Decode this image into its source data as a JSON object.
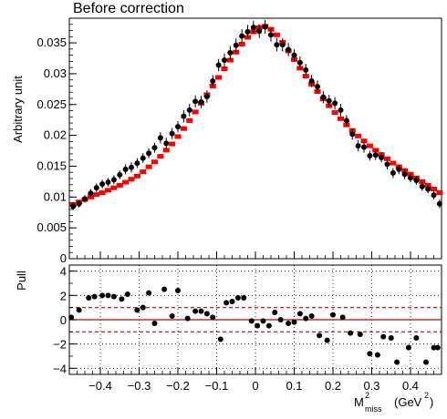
{
  "chart_data": [
    {
      "type": "scatter",
      "title": "Before correction",
      "ylabel": "Arbitrary unit",
      "xlabel": "",
      "xlim": [
        -0.48,
        0.48
      ],
      "ylim": [
        0,
        0.039
      ],
      "x_ticks": [
        {
          "v": -0.4,
          "label": "−0.4"
        },
        {
          "v": -0.3,
          "label": "−0.3"
        },
        {
          "v": -0.2,
          "label": "−0.2"
        },
        {
          "v": -0.1,
          "label": "−0.1"
        },
        {
          "v": 0,
          "label": "0"
        },
        {
          "v": 0.1,
          "label": "0.1"
        },
        {
          "v": 0.2,
          "label": "0.2"
        },
        {
          "v": 0.3,
          "label": "0.3"
        },
        {
          "v": 0.4,
          "label": "0.4"
        }
      ],
      "y_ticks": [
        {
          "v": 0,
          "label": "0"
        },
        {
          "v": 0.005,
          "label": "0.005"
        },
        {
          "v": 0.01,
          "label": "0.01"
        },
        {
          "v": 0.015,
          "label": "0.015"
        },
        {
          "v": 0.02,
          "label": "0.02"
        },
        {
          "v": 0.025,
          "label": "0.025"
        },
        {
          "v": 0.03,
          "label": "0.03"
        },
        {
          "v": 0.035,
          "label": "0.035"
        }
      ],
      "bin_width": 0.0167,
      "series": [
        {
          "name": "",
          "color": "#ff0000",
          "style": "bin-markers",
          "x": [
            -0.47,
            -0.455,
            -0.44,
            -0.425,
            -0.41,
            -0.395,
            -0.38,
            -0.365,
            -0.35,
            -0.335,
            -0.32,
            -0.305,
            -0.29,
            -0.275,
            -0.26,
            -0.245,
            -0.23,
            -0.215,
            -0.2,
            -0.185,
            -0.17,
            -0.155,
            -0.14,
            -0.125,
            -0.11,
            -0.095,
            -0.08,
            -0.065,
            -0.05,
            -0.035,
            -0.02,
            -0.005,
            0.01,
            0.025,
            0.04,
            0.055,
            0.07,
            0.085,
            0.1,
            0.115,
            0.13,
            0.145,
            0.16,
            0.175,
            0.19,
            0.205,
            0.22,
            0.235,
            0.25,
            0.265,
            0.28,
            0.295,
            0.31,
            0.325,
            0.34,
            0.355,
            0.37,
            0.385,
            0.4,
            0.415,
            0.43,
            0.445,
            0.46,
            0.475
          ],
          "y": [
            0.0088,
            0.0092,
            0.0096,
            0.01,
            0.0104,
            0.0107,
            0.0111,
            0.0115,
            0.0119,
            0.0124,
            0.0129,
            0.0134,
            0.0141,
            0.0149,
            0.0157,
            0.0166,
            0.0176,
            0.0186,
            0.0198,
            0.0211,
            0.0224,
            0.0238,
            0.0252,
            0.0266,
            0.028,
            0.0294,
            0.0308,
            0.0322,
            0.0335,
            0.0348,
            0.0359,
            0.0368,
            0.0375,
            0.0377,
            0.0372,
            0.0363,
            0.0351,
            0.0337,
            0.0323,
            0.0309,
            0.0296,
            0.0283,
            0.0271,
            0.0259,
            0.0248,
            0.0237,
            0.0227,
            0.0217,
            0.0208,
            0.0199,
            0.0191,
            0.0183,
            0.0176,
            0.0169,
            0.0162,
            0.0155,
            0.0149,
            0.0143,
            0.0137,
            0.0131,
            0.0125,
            0.0119,
            0.0113,
            0.0107
          ]
        },
        {
          "name": "",
          "color": "#000000",
          "style": "points-with-errors",
          "x": [
            -0.47,
            -0.455,
            -0.44,
            -0.425,
            -0.41,
            -0.395,
            -0.38,
            -0.365,
            -0.35,
            -0.335,
            -0.32,
            -0.305,
            -0.29,
            -0.275,
            -0.26,
            -0.245,
            -0.23,
            -0.215,
            -0.2,
            -0.185,
            -0.17,
            -0.155,
            -0.14,
            -0.125,
            -0.11,
            -0.095,
            -0.08,
            -0.065,
            -0.05,
            -0.035,
            -0.02,
            -0.005,
            0.01,
            0.025,
            0.04,
            0.055,
            0.07,
            0.085,
            0.1,
            0.115,
            0.13,
            0.145,
            0.16,
            0.175,
            0.19,
            0.205,
            0.22,
            0.235,
            0.25,
            0.265,
            0.28,
            0.295,
            0.31,
            0.325,
            0.34,
            0.355,
            0.37,
            0.385,
            0.4,
            0.415,
            0.43,
            0.445,
            0.46,
            0.475
          ],
          "y": [
            0.0085,
            0.0089,
            0.0097,
            0.0106,
            0.0115,
            0.0121,
            0.0124,
            0.0128,
            0.0136,
            0.0145,
            0.0148,
            0.0155,
            0.0163,
            0.0171,
            0.018,
            0.0196,
            0.0187,
            0.0203,
            0.0214,
            0.0231,
            0.0241,
            0.0255,
            0.0254,
            0.0263,
            0.0288,
            0.0314,
            0.0322,
            0.0334,
            0.0346,
            0.0361,
            0.0368,
            0.0375,
            0.0369,
            0.0376,
            0.0363,
            0.0347,
            0.0347,
            0.0339,
            0.033,
            0.0318,
            0.0306,
            0.0288,
            0.0279,
            0.0262,
            0.0256,
            0.0252,
            0.0241,
            0.0224,
            0.0202,
            0.0183,
            0.0181,
            0.0167,
            0.0168,
            0.0164,
            0.0153,
            0.0139,
            0.0145,
            0.0137,
            0.0131,
            0.0127,
            0.0117,
            0.0113,
            0.0103,
            0.0089
          ],
          "err": [
            0.0006,
            0.0006,
            0.0006,
            0.0007,
            0.0007,
            0.0007,
            0.0007,
            0.0007,
            0.0007,
            0.0008,
            0.0008,
            0.0008,
            0.0008,
            0.0008,
            0.0008,
            0.0009,
            0.0009,
            0.0009,
            0.0009,
            0.001,
            0.001,
            0.001,
            0.001,
            0.001,
            0.001,
            0.001,
            0.0011,
            0.0011,
            0.0011,
            0.0011,
            0.0011,
            0.0011,
            0.0011,
            0.0011,
            0.0011,
            0.0011,
            0.0011,
            0.0011,
            0.001,
            0.001,
            0.001,
            0.001,
            0.001,
            0.001,
            0.001,
            0.001,
            0.001,
            0.0009,
            0.0009,
            0.0009,
            0.0009,
            0.0008,
            0.0008,
            0.0008,
            0.0008,
            0.0008,
            0.0008,
            0.0008,
            0.0007,
            0.0007,
            0.0007,
            0.0007,
            0.0007,
            0.0007
          ]
        }
      ]
    },
    {
      "type": "scatter",
      "title": "",
      "ylabel": "Pull",
      "xlabel_main": "M",
      "xlabel_sup": "2",
      "xlabel_sub": "miss",
      "xlabel_unit_open": "(GeV",
      "xlabel_unit_sup": "2",
      "xlabel_unit_close": ")",
      "xlim": [
        -0.48,
        0.48
      ],
      "ylim": [
        -4.5,
        4.5
      ],
      "grid": true,
      "y_ticks": [
        {
          "v": 4,
          "label": "4"
        },
        {
          "v": 2,
          "label": "2"
        },
        {
          "v": 0,
          "label": "0"
        },
        {
          "v": -2,
          "label": "−2"
        },
        {
          "v": -4,
          "label": "−4"
        }
      ],
      "reference_lines": [
        {
          "y": 0,
          "color": "#cc0000",
          "style": "solid"
        },
        {
          "y": 1,
          "color": "#cc0000",
          "style": "dashed"
        },
        {
          "y": -1,
          "color": "#cc0000",
          "style": "dashed"
        }
      ],
      "series": [
        {
          "name": "",
          "color": "#000000",
          "x": [
            -0.475,
            -0.455,
            -0.43,
            -0.415,
            -0.395,
            -0.38,
            -0.365,
            -0.345,
            -0.33,
            -0.305,
            -0.29,
            -0.275,
            -0.26,
            -0.235,
            -0.215,
            -0.2,
            -0.175,
            -0.155,
            -0.14,
            -0.125,
            -0.11,
            -0.09,
            -0.075,
            -0.06,
            -0.045,
            -0.03,
            -0.01,
            0.005,
            0.02,
            0.035,
            0.05,
            0.065,
            0.085,
            0.1,
            0.115,
            0.13,
            0.145,
            0.165,
            0.185,
            0.2,
            0.225,
            0.245,
            0.27,
            0.295,
            0.315,
            0.33,
            0.35,
            0.365,
            0.395,
            0.415,
            0.44,
            0.46,
            0.47
          ],
          "y": [
            0.2,
            0.8,
            1.8,
            1.9,
            2.0,
            2.0,
            1.9,
            1.7,
            2.1,
            0.8,
            1.0,
            2.2,
            -0.3,
            2.5,
            0.3,
            2.4,
            0.1,
            0.7,
            0.7,
            0.5,
            0.2,
            -1.6,
            1.4,
            1.5,
            1.8,
            1.8,
            -0.1,
            -0.5,
            -0.1,
            -0.5,
            0.6,
            0.0,
            -0.3,
            -0.2,
            0.5,
            0.1,
            0.3,
            -1.3,
            -1.7,
            0.4,
            0.2,
            -1.1,
            -1.2,
            -2.8,
            -2.9,
            -1.4,
            -1.5,
            -3.5,
            -2.3,
            -1.5,
            -3.5,
            -2.3,
            -2.3
          ]
        }
      ]
    }
  ]
}
